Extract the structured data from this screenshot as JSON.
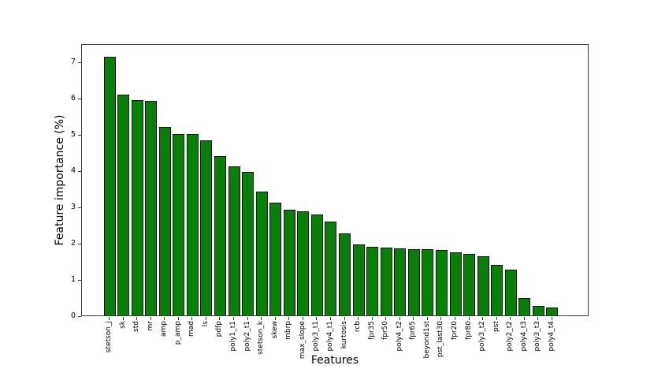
{
  "chart_data": {
    "type": "bar",
    "title": "",
    "xlabel": "Features",
    "ylabel": "Feature importance (%)",
    "legend": "none",
    "grid": false,
    "bar_color": "#088008",
    "bar_edge_color": "#141414",
    "ylim": [
      0,
      7.49
    ],
    "yticks": [
      0,
      1,
      2,
      3,
      4,
      5,
      6,
      7
    ],
    "ytick_labels": [
      "0",
      "1",
      "2",
      "3",
      "4",
      "5",
      "6",
      "7"
    ],
    "categories": [
      "stetson_j",
      "sk",
      "std",
      "mr",
      "amp",
      "p_amp",
      "mad",
      "ls",
      "pdfp",
      "poly1_t1",
      "poly2_t1",
      "stetson_k",
      "skew",
      "mbrp",
      "max_slope",
      "poly3_t1",
      "poly4_t1",
      "kurtosis",
      "rcb",
      "fpr35",
      "fpr50",
      "poly4_t2",
      "fpr65",
      "beyond1st",
      "pst_last30",
      "fpr20",
      "fpr80",
      "poly3_t2",
      "pst",
      "poly2_t2",
      "poly4_t3",
      "poly3_t3",
      "poly4_t4"
    ],
    "values": [
      7.12,
      6.08,
      5.93,
      5.9,
      5.2,
      5.0,
      4.99,
      4.82,
      4.38,
      4.1,
      3.96,
      3.4,
      3.11,
      2.92,
      2.86,
      2.77,
      2.59,
      2.25,
      1.95,
      1.9,
      1.87,
      1.84,
      1.83,
      1.82,
      1.81,
      1.74,
      1.69,
      1.62,
      1.38,
      1.26,
      0.47,
      0.27,
      0.21
    ]
  }
}
